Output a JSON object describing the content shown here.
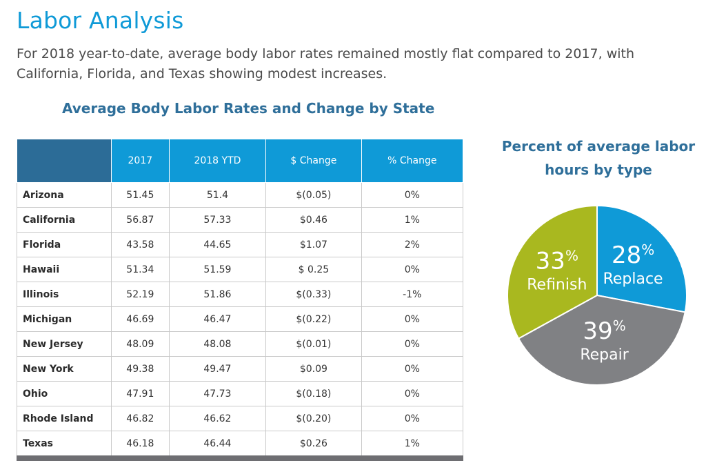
{
  "page": {
    "title": "Labor Analysis",
    "intro": "For 2018 year-to-date, average body labor rates remained mostly flat compared to 2017, with California, Florida, and Texas showing modest increases."
  },
  "chart_data": [
    {
      "type": "table",
      "title": "Average Body Labor Rates and Change by State",
      "columns": [
        "",
        "2017",
        "2018 YTD",
        "$ Change",
        "% Change"
      ],
      "rows": [
        [
          "Arizona",
          "51.45",
          "51.4",
          "$(0.05)",
          "0%"
        ],
        [
          "California",
          "56.87",
          "57.33",
          "$0.46",
          "1%"
        ],
        [
          "Florida",
          "43.58",
          "44.65",
          "$1.07",
          "2%"
        ],
        [
          "Hawaii",
          "51.34",
          "51.59",
          "$ 0.25",
          "0%"
        ],
        [
          "Illinois",
          "52.19",
          "51.86",
          "$(0.33)",
          "-1%"
        ],
        [
          "Michigan",
          "46.69",
          "46.47",
          "$(0.22)",
          "0%"
        ],
        [
          "New Jersey",
          "48.09",
          "48.08",
          "$(0.01)",
          "0%"
        ],
        [
          "New York",
          "49.38",
          "49.47",
          "$0.09",
          "0%"
        ],
        [
          "Ohio",
          "47.91",
          "47.73",
          "$(0.18)",
          "0%"
        ],
        [
          "Rhode Island",
          "46.82",
          "46.62",
          "$(0.20)",
          "0%"
        ],
        [
          "Texas",
          "46.18",
          "46.44",
          "$0.26",
          "1%"
        ]
      ]
    },
    {
      "type": "pie",
      "title": "Percent of average labor hours by type",
      "slices": [
        {
          "label": "Replace",
          "value": 28,
          "color": "#0f9ad7"
        },
        {
          "label": "Repair",
          "value": 39,
          "color": "#808184"
        },
        {
          "label": "Refinish",
          "value": 33,
          "color": "#a9b81f"
        }
      ],
      "start_angle_deg": 0,
      "direction": "clockwise",
      "percent_suffix": "%"
    }
  ]
}
